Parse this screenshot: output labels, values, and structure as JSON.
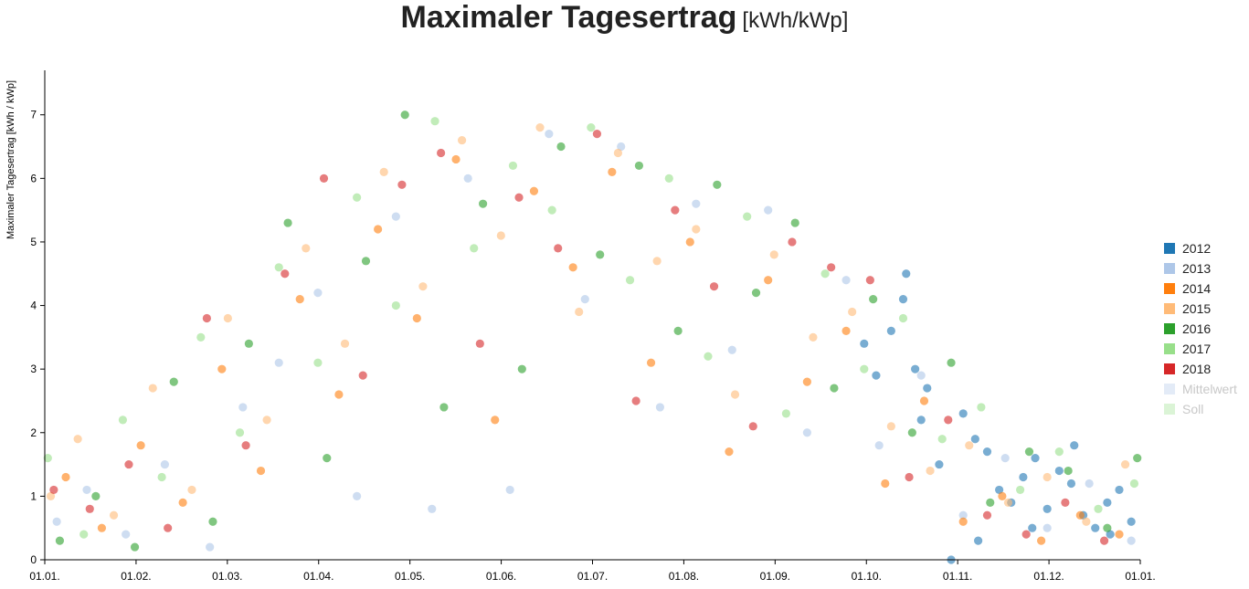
{
  "chart_data": {
    "type": "scatter",
    "title": "Maximaler Tagesertrag",
    "title_unit": "[kWh/kWp]",
    "xlabel": "",
    "ylabel": "Maximaler Tagesertrag [kWh / kWp]",
    "xlim": [
      "01.01.",
      "01.01."
    ],
    "ylim": [
      0,
      7.7
    ],
    "x_ticks": [
      "01.01.",
      "01.02.",
      "01.03.",
      "01.04.",
      "01.05.",
      "01.06.",
      "01.07.",
      "01.08.",
      "01.09.",
      "01.10.",
      "01.11.",
      "01.12.",
      "01.01."
    ],
    "y_ticks": [
      0,
      1,
      2,
      3,
      4,
      5,
      6,
      7
    ],
    "grid": false,
    "legend_position": "right",
    "series": [
      {
        "name": "2012",
        "color": "#1f77b4",
        "enabled": true,
        "x": [
          "01.10.",
          "05.10.",
          "10.10.",
          "14.10.",
          "18.10.",
          "22.10.",
          "26.10.",
          "30.10.",
          "03.11.",
          "07.11.",
          "11.11.",
          "15.11.",
          "19.11.",
          "23.11.",
          "27.11.",
          "01.12.",
          "05.12.",
          "09.12.",
          "13.12.",
          "17.12.",
          "21.12.",
          "25.12.",
          "29.12.",
          "15.10.",
          "20.10.",
          "08.11.",
          "26.11.",
          "10.12.",
          "22.12."
        ],
        "y": [
          3.4,
          2.9,
          3.6,
          4.1,
          3.0,
          2.7,
          1.5,
          0.0,
          2.3,
          1.9,
          1.7,
          1.1,
          0.9,
          1.3,
          1.6,
          0.8,
          1.4,
          1.2,
          0.7,
          0.5,
          0.9,
          1.1,
          0.6,
          4.5,
          2.2,
          0.3,
          0.5,
          1.8,
          0.4
        ]
      },
      {
        "name": "2013",
        "color": "#aec7e8",
        "enabled": true,
        "x": [
          "05.01.",
          "15.01.",
          "28.01.",
          "10.02.",
          "25.02.",
          "08.03.",
          "20.03.",
          "02.04.",
          "15.04.",
          "28.04.",
          "10.05.",
          "22.05.",
          "05.06.",
          "18.06.",
          "30.06.",
          "12.07.",
          "25.07.",
          "06.08.",
          "18.08.",
          "30.08.",
          "12.09.",
          "25.09.",
          "06.10.",
          "20.10.",
          "03.11.",
          "17.11.",
          "01.12.",
          "15.12.",
          "29.12."
        ],
        "y": [
          0.6,
          1.1,
          0.4,
          1.5,
          0.2,
          2.4,
          3.1,
          4.2,
          1.0,
          5.4,
          0.8,
          6.0,
          1.1,
          6.7,
          4.1,
          6.5,
          2.4,
          5.6,
          3.3,
          5.5,
          2.0,
          4.4,
          1.8,
          2.9,
          0.7,
          1.6,
          0.5,
          1.2,
          0.3
        ]
      },
      {
        "name": "2014",
        "color": "#ff7f0e",
        "enabled": true,
        "x": [
          "08.01.",
          "20.01.",
          "02.02.",
          "16.02.",
          "01.03.",
          "14.03.",
          "27.03.",
          "09.04.",
          "22.04.",
          "05.05.",
          "18.05.",
          "31.05.",
          "13.06.",
          "26.06.",
          "09.07.",
          "22.07.",
          "04.08.",
          "17.08.",
          "30.08.",
          "12.09.",
          "25.09.",
          "08.10.",
          "21.10.",
          "03.11.",
          "16.11.",
          "29.11.",
          "12.12.",
          "25.12."
        ],
        "y": [
          1.3,
          0.5,
          1.8,
          0.9,
          3.0,
          1.4,
          4.1,
          2.6,
          5.2,
          3.8,
          6.3,
          2.2,
          5.8,
          4.6,
          6.1,
          3.1,
          5.0,
          1.7,
          4.4,
          2.8,
          3.6,
          1.2,
          2.5,
          0.6,
          1.0,
          0.3,
          0.7,
          0.4
        ]
      },
      {
        "name": "2015",
        "color": "#ffbb78",
        "enabled": true,
        "x": [
          "03.01.",
          "12.01.",
          "24.01.",
          "06.02.",
          "19.02.",
          "03.03.",
          "16.03.",
          "29.03.",
          "11.04.",
          "24.04.",
          "07.05.",
          "20.05.",
          "02.06.",
          "15.06.",
          "28.06.",
          "11.07.",
          "24.07.",
          "06.08.",
          "19.08.",
          "01.09.",
          "14.09.",
          "27.09.",
          "10.10.",
          "23.10.",
          "05.11.",
          "18.11.",
          "01.12.",
          "14.12.",
          "27.12."
        ],
        "y": [
          1.0,
          1.9,
          0.7,
          2.7,
          1.1,
          3.8,
          2.2,
          4.9,
          3.4,
          6.1,
          4.3,
          6.6,
          5.1,
          6.8,
          3.9,
          6.4,
          4.7,
          5.2,
          2.6,
          4.8,
          3.5,
          3.9,
          2.1,
          1.4,
          1.8,
          0.9,
          1.3,
          0.6,
          1.5
        ]
      },
      {
        "name": "2016",
        "color": "#2ca02c",
        "enabled": true,
        "x": [
          "06.01.",
          "18.01.",
          "31.01.",
          "13.02.",
          "26.02.",
          "10.03.",
          "23.03.",
          "05.04.",
          "18.04.",
          "01.05.",
          "14.05.",
          "27.05.",
          "09.06.",
          "22.06.",
          "05.07.",
          "18.07.",
          "31.07.",
          "13.08.",
          "26.08.",
          "08.09.",
          "21.09.",
          "04.10.",
          "17.10.",
          "30.10.",
          "12.11.",
          "25.11.",
          "08.12.",
          "21.12.",
          "31.12."
        ],
        "y": [
          0.3,
          1.0,
          0.2,
          2.8,
          0.6,
          3.4,
          5.3,
          1.6,
          4.7,
          7.0,
          2.4,
          5.6,
          3.0,
          6.5,
          4.8,
          6.2,
          3.6,
          5.9,
          4.2,
          5.3,
          2.7,
          4.1,
          2.0,
          3.1,
          0.9,
          1.7,
          1.4,
          0.5,
          1.6
        ]
      },
      {
        "name": "2017",
        "color": "#98df8a",
        "enabled": true,
        "x": [
          "02.01.",
          "14.01.",
          "27.01.",
          "09.02.",
          "22.02.",
          "07.03.",
          "20.03.",
          "02.04.",
          "15.04.",
          "28.04.",
          "11.05.",
          "24.05.",
          "06.06.",
          "19.06.",
          "02.07.",
          "15.07.",
          "28.07.",
          "10.08.",
          "23.08.",
          "05.09.",
          "18.09.",
          "01.10.",
          "14.10.",
          "27.10.",
          "09.11.",
          "22.11.",
          "05.12.",
          "18.12.",
          "30.12."
        ],
        "y": [
          1.6,
          0.4,
          2.2,
          1.3,
          3.5,
          2.0,
          4.6,
          3.1,
          5.7,
          4.0,
          6.9,
          4.9,
          6.2,
          5.5,
          6.8,
          4.4,
          6.0,
          3.2,
          5.4,
          2.3,
          4.5,
          3.0,
          3.8,
          1.9,
          2.4,
          1.1,
          1.7,
          0.8,
          1.2
        ]
      },
      {
        "name": "2018",
        "color": "#d62728",
        "enabled": true,
        "x": [
          "04.01.",
          "16.01.",
          "29.01.",
          "11.02.",
          "24.02.",
          "09.03.",
          "22.03.",
          "04.04.",
          "17.04.",
          "30.04.",
          "13.05.",
          "26.05.",
          "08.06.",
          "21.06.",
          "04.07.",
          "17.07.",
          "30.07.",
          "12.08.",
          "25.08.",
          "07.09.",
          "20.09.",
          "03.10.",
          "16.10.",
          "29.10.",
          "11.11.",
          "24.11.",
          "07.12.",
          "20.12."
        ],
        "y": [
          1.1,
          0.8,
          1.5,
          0.5,
          3.8,
          1.8,
          4.5,
          6.0,
          2.9,
          5.9,
          6.4,
          3.4,
          5.7,
          4.9,
          6.7,
          2.5,
          5.5,
          4.3,
          2.1,
          5.0,
          4.6,
          4.4,
          1.3,
          2.2,
          0.7,
          0.4,
          0.9,
          0.3
        ]
      },
      {
        "name": "Mittelwert",
        "color": "#aec7e8",
        "enabled": false,
        "x": [],
        "y": []
      },
      {
        "name": "Soll",
        "color": "#98df8a",
        "enabled": false,
        "x": [],
        "y": []
      }
    ]
  }
}
